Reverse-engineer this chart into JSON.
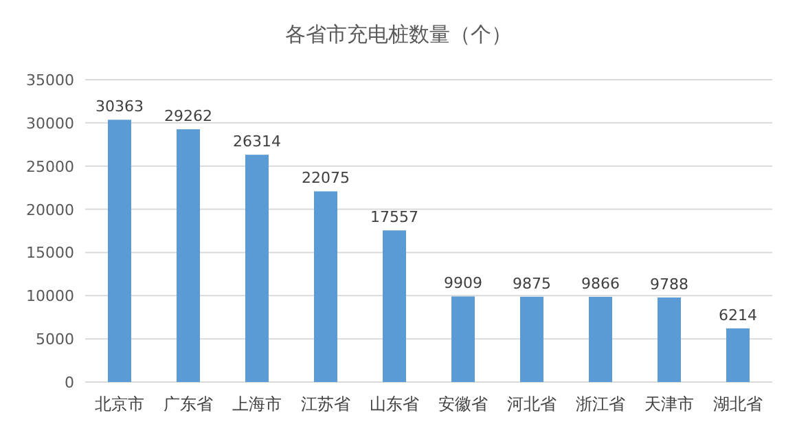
{
  "chart_data": {
    "type": "bar",
    "title": "各省市充电桩数量（个）",
    "categories": [
      "北京市",
      "广东省",
      "上海市",
      "江苏省",
      "山东省",
      "安徽省",
      "河北省",
      "浙江省",
      "天津市",
      "湖北省"
    ],
    "values": [
      30363,
      29262,
      26314,
      22075,
      17557,
      9909,
      9875,
      9866,
      9788,
      6214
    ],
    "color": "#5b9bd5",
    "ylim": [
      0,
      35000
    ],
    "yticks": [
      0,
      5000,
      10000,
      15000,
      20000,
      25000,
      30000,
      35000
    ],
    "grid": "y",
    "data_labels": true
  }
}
